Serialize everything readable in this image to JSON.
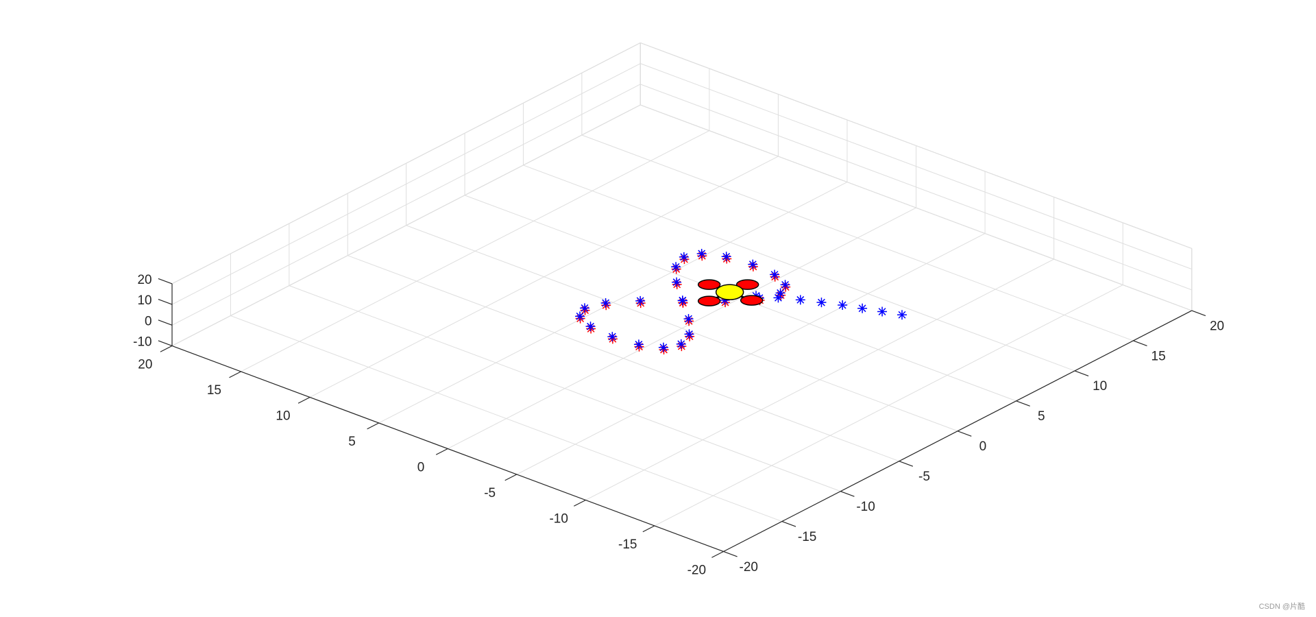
{
  "chart_data": {
    "type": "scatter3d",
    "xlim": [
      -20,
      20
    ],
    "ylim": [
      -20,
      20
    ],
    "zlim": [
      -10,
      20
    ],
    "xticks": [
      -20,
      -15,
      -10,
      -5,
      0,
      5,
      10,
      15,
      20
    ],
    "yticks": [
      -20,
      -15,
      -10,
      -5,
      0,
      5,
      10,
      15,
      20
    ],
    "zticks": [
      -10,
      0,
      10,
      20
    ],
    "grid": true,
    "series": [
      {
        "color": "#ff0000",
        "marker": "*",
        "x": [
          -0.5,
          1.25,
          2.53,
          3.0,
          2.53,
          1.25,
          -0.5,
          -2.25,
          -3.53,
          -4.0,
          -3.53,
          -2.25,
          -0.5,
          1.25,
          2.53,
          3.0,
          2.53,
          1.25,
          -0.5,
          -2.25,
          -3.53,
          -4.0,
          -3.53,
          -2.25,
          -0.5
        ],
        "y": [
          -0.5,
          1.05,
          2.5,
          3.74,
          4.7,
          5.3,
          5.5,
          5.3,
          4.7,
          3.74,
          2.5,
          1.05,
          -0.5,
          -2.05,
          -3.5,
          -4.74,
          -5.7,
          -6.3,
          -6.5,
          -6.3,
          -5.7,
          -4.74,
          -3.5,
          -2.05,
          -0.5
        ],
        "z": [
          5,
          5,
          5,
          5,
          5,
          5,
          5,
          5,
          5,
          5,
          5,
          5,
          5,
          5,
          5,
          5,
          5,
          5,
          5,
          5,
          5,
          5,
          5,
          5,
          5
        ]
      },
      {
        "color": "#0000ff",
        "marker": "*",
        "x": [
          -10.7,
          -9.6,
          -8.5,
          -7.4,
          -6.3,
          -5.2,
          -4.1,
          -3.0,
          -1.9,
          -0.3,
          1.45,
          2.73,
          3.2,
          2.73,
          1.45,
          -0.3,
          -2.05,
          -3.33,
          -3.8,
          -3.33,
          -2.05,
          -0.3,
          1.45,
          2.73,
          3.2,
          2.73,
          1.45,
          -0.3,
          -2.05,
          -3.33,
          -3.8,
          -3.33,
          -2.05,
          -0.3
        ],
        "y": [
          6.2,
          5.8,
          5.4,
          5.0,
          4.5,
          4.0,
          3.4,
          2.8,
          2.2,
          -0.3,
          1.25,
          2.7,
          3.94,
          4.9,
          5.5,
          5.7,
          5.5,
          4.9,
          3.94,
          2.7,
          1.25,
          -0.3,
          -1.85,
          -3.3,
          -4.54,
          -5.5,
          -6.1,
          -6.3,
          -6.1,
          -5.5,
          -4.54,
          -3.3,
          -1.85,
          -0.3
        ],
        "z": [
          5,
          5,
          5,
          5,
          5,
          5,
          5,
          5,
          5,
          5,
          5,
          5,
          5,
          5,
          5,
          5,
          5,
          5,
          5,
          5,
          5,
          5,
          5,
          5,
          5,
          5,
          5,
          5,
          5,
          5,
          5,
          5,
          5,
          5
        ]
      }
    ],
    "quadrotor": {
      "x": -1.6,
      "y": 2.2,
      "z": 5
    },
    "watermark": "CSDN @片酷"
  }
}
